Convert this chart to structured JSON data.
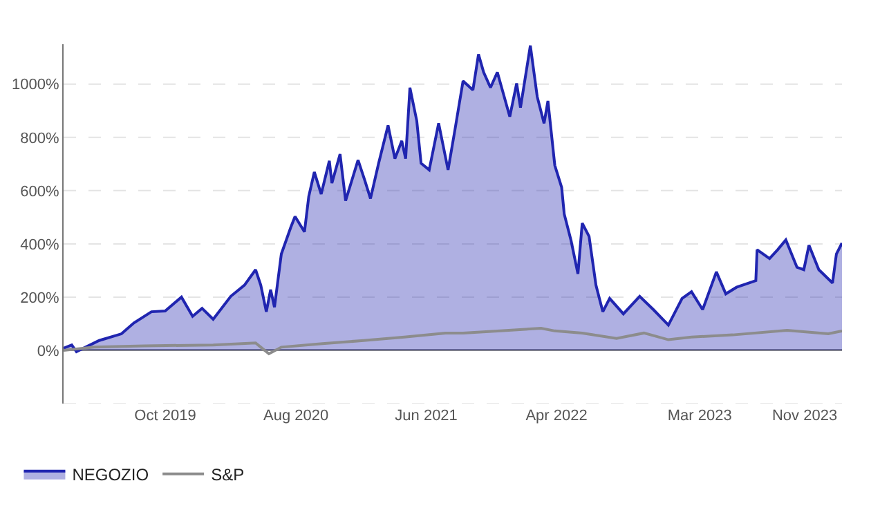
{
  "chart_data": {
    "type": "area",
    "xlim": [
      "2019-02-06",
      "2024-01-27"
    ],
    "ylim": [
      -200,
      1150
    ],
    "xticks": [
      {
        "value": "2019-10-01",
        "label": "Oct 2019"
      },
      {
        "value": "2020-08-01",
        "label": "Aug 2020"
      },
      {
        "value": "2021-06-01",
        "label": "Jun 2021"
      },
      {
        "value": "2022-04-01",
        "label": "Apr 2022"
      },
      {
        "value": "2023-03-01",
        "label": "Mar 2023"
      },
      {
        "value": "2023-11-01",
        "label": "Nov 2023"
      }
    ],
    "yticks": [
      {
        "value": -200,
        "label": null
      },
      {
        "value": 0,
        "label": "0%"
      },
      {
        "value": 200,
        "label": "200%"
      },
      {
        "value": 400,
        "label": "400%"
      },
      {
        "value": 600,
        "label": "600%"
      },
      {
        "value": 800,
        "label": "800%"
      },
      {
        "value": 1000,
        "label": "1000%"
      }
    ],
    "grid": "y",
    "legend": "bottom left",
    "marker": "none",
    "line_style": "solid",
    "series": [
      {
        "name": "NEGOZIO",
        "type": "area",
        "color": "#2025b0",
        "x": [
          "2019-02-06",
          "2019-02-25",
          "2019-03-08",
          "2019-04-30",
          "2019-06-21",
          "2019-07-20",
          "2019-08-30",
          "2019-10-01",
          "2019-11-08",
          "2019-12-04",
          "2019-12-26",
          "2020-01-21",
          "2020-03-02",
          "2020-04-03",
          "2020-04-29",
          "2020-05-11",
          "2020-05-24",
          "2020-06-03",
          "2020-06-12",
          "2020-06-28",
          "2020-07-20",
          "2020-07-30",
          "2020-08-21",
          "2020-08-31",
          "2020-09-13",
          "2020-09-29",
          "2020-10-18",
          "2020-10-24",
          "2020-11-12",
          "2020-11-25",
          "2020-12-24",
          "2021-01-09",
          "2021-01-22",
          "2021-02-10",
          "2021-03-04",
          "2021-03-20",
          "2021-04-05",
          "2021-04-14",
          "2021-04-24",
          "2021-05-10",
          "2021-05-20",
          "2021-06-08",
          "2021-06-30",
          "2021-07-22",
          "2021-08-07",
          "2021-08-26",
          "2021-09-18",
          "2021-10-01",
          "2021-10-13",
          "2021-10-29",
          "2021-11-14",
          "2021-12-13",
          "2021-12-29",
          "2022-01-07",
          "2022-01-30",
          "2022-02-15",
          "2022-03-03",
          "2022-03-12",
          "2022-03-28",
          "2022-04-13",
          "2022-04-19",
          "2022-05-05",
          "2022-05-21",
          "2022-05-31",
          "2022-06-16",
          "2022-07-02",
          "2022-07-18",
          "2022-08-03",
          "2022-09-04",
          "2022-10-12",
          "2022-11-13",
          "2022-12-18",
          "2023-01-19",
          "2023-02-10",
          "2023-03-08",
          "2023-04-09",
          "2023-05-01",
          "2023-05-26",
          "2023-07-10",
          "2023-07-13",
          "2023-08-11",
          "2023-08-30",
          "2023-09-18",
          "2023-10-14",
          "2023-10-30",
          "2023-11-11",
          "2023-12-04",
          "2024-01-05",
          "2024-01-14",
          "2024-01-27"
        ],
        "values": [
          8,
          20,
          -5,
          37,
          62,
          103,
          145,
          148,
          200,
          128,
          158,
          117,
          203,
          245,
          303,
          245,
          145,
          228,
          162,
          362,
          462,
          503,
          445,
          578,
          670,
          587,
          712,
          628,
          737,
          562,
          715,
          637,
          570,
          703,
          845,
          720,
          787,
          720,
          987,
          862,
          703,
          678,
          853,
          678,
          828,
          1012,
          978,
          1112,
          1045,
          987,
          1045,
          878,
          1003,
          912,
          1145,
          953,
          853,
          937,
          695,
          612,
          512,
          412,
          287,
          478,
          428,
          245,
          145,
          195,
          137,
          203,
          153,
          95,
          195,
          220,
          153,
          295,
          212,
          237,
          262,
          378,
          345,
          378,
          415,
          312,
          303,
          395,
          303,
          253,
          362,
          403
        ]
      },
      {
        "name": "S&P",
        "type": "line",
        "color": "#8c8c8c",
        "x": [
          "2019-02-06",
          "2019-04-18",
          "2019-08-14",
          "2020-01-21",
          "2020-04-29",
          "2020-05-11",
          "2020-05-30",
          "2020-06-28",
          "2020-10-02",
          "2021-01-06",
          "2021-04-11",
          "2021-07-16",
          "2021-08-26",
          "2021-11-21",
          "2022-02-24",
          "2022-03-28",
          "2022-05-31",
          "2022-08-19",
          "2022-10-22",
          "2022-12-18",
          "2023-02-10",
          "2023-05-17",
          "2023-09-21",
          "2023-12-26",
          "2024-01-27"
        ],
        "values": [
          0,
          12,
          17,
          20,
          28,
          12,
          -13,
          12,
          25,
          37,
          50,
          65,
          65,
          73,
          83,
          73,
          65,
          45,
          65,
          40,
          50,
          58,
          75,
          62,
          73
        ]
      }
    ]
  }
}
